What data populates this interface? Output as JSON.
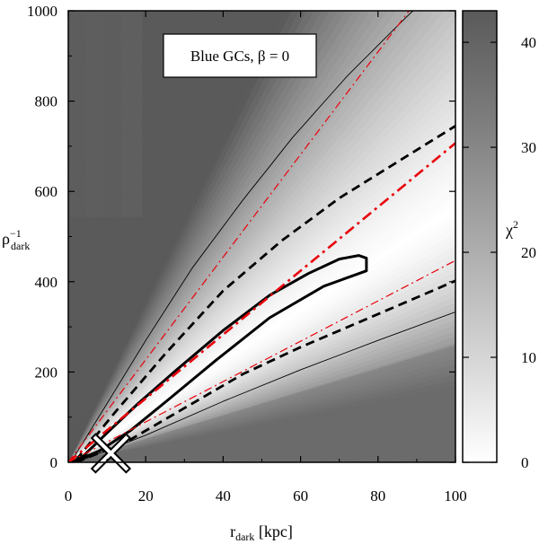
{
  "chart_data": {
    "type": "heatmap",
    "annotation": "Blue GCs, β = 0",
    "xlabel": {
      "main": "r",
      "sub": "dark",
      "unit": " [kpc]"
    },
    "ylabel": {
      "main": "ρ",
      "sup": "−1",
      "sub": "dark"
    },
    "xlim": [
      0,
      100
    ],
    "ylim": [
      0,
      1000
    ],
    "xticks": [
      0,
      20,
      40,
      60,
      80,
      100
    ],
    "yticks": [
      0,
      200,
      400,
      600,
      800,
      1000
    ],
    "colorbar": {
      "label": "χ",
      "label_sup": "2",
      "range": [
        0,
        43
      ],
      "ticks": [
        0,
        10,
        20,
        30,
        40
      ],
      "scale": "grayscale, white = 0, dark gray = high"
    },
    "heatmap": {
      "description": "chi-squared over (r_dark, rho_dark^-1); minimum valley along ridge from origin through (74, 430)",
      "valley_slope": 5.6,
      "max_value": 43
    },
    "marker": {
      "name": "cross",
      "x": 11,
      "y": 20
    },
    "contours": [
      {
        "name": "inner solid contour",
        "style": "solid-thick",
        "color": "#000000",
        "points": [
          [
            1,
            0
          ],
          [
            8,
            25
          ],
          [
            16,
            70
          ],
          [
            26,
            140
          ],
          [
            38,
            225
          ],
          [
            52,
            320
          ],
          [
            66,
            390
          ],
          [
            77,
            424
          ],
          [
            77,
            452
          ],
          [
            75,
            458
          ],
          [
            70,
            450
          ],
          [
            62,
            418
          ],
          [
            52,
            370
          ],
          [
            40,
            292
          ],
          [
            28,
            205
          ],
          [
            18,
            130
          ],
          [
            10,
            65
          ],
          [
            4,
            15
          ],
          [
            1,
            0
          ]
        ]
      },
      {
        "name": "dashed contour upper",
        "style": "dashed",
        "color": "#000000",
        "points": [
          [
            2,
            5
          ],
          [
            12,
            110
          ],
          [
            25,
            240
          ],
          [
            40,
            380
          ],
          [
            55,
            490
          ],
          [
            70,
            585
          ],
          [
            85,
            665
          ],
          [
            100,
            745
          ]
        ]
      },
      {
        "name": "dashed contour lower",
        "style": "dashed",
        "color": "#000000",
        "points": [
          [
            2,
            0
          ],
          [
            15,
            45
          ],
          [
            30,
            120
          ],
          [
            45,
            195
          ],
          [
            60,
            255
          ],
          [
            75,
            310
          ],
          [
            90,
            365
          ],
          [
            100,
            402
          ]
        ]
      },
      {
        "name": "thin contour upper",
        "style": "thin",
        "color": "#000000",
        "points": [
          [
            1,
            5
          ],
          [
            10,
            130
          ],
          [
            20,
            270
          ],
          [
            32,
            430
          ],
          [
            45,
            580
          ],
          [
            58,
            720
          ],
          [
            72,
            855
          ],
          [
            86,
            975
          ],
          [
            89,
            1000
          ]
        ]
      },
      {
        "name": "thin contour lower",
        "style": "thin",
        "color": "#000000",
        "points": [
          [
            2,
            0
          ],
          [
            20,
            60
          ],
          [
            40,
            135
          ],
          [
            60,
            205
          ],
          [
            80,
            270
          ],
          [
            100,
            333
          ]
        ]
      },
      {
        "name": "red dash-dot thick",
        "style": "dashdot-thick",
        "color": "#e8000b",
        "points": [
          [
            0,
            0
          ],
          [
            100,
            707
          ]
        ]
      },
      {
        "name": "red dash-dot thin upper",
        "style": "dashdot-thin",
        "color": "#e8000b",
        "points": [
          [
            0,
            0
          ],
          [
            88,
            1000
          ]
        ]
      },
      {
        "name": "red dash-dot thin lower",
        "style": "dashdot-thin",
        "color": "#e8000b",
        "points": [
          [
            0,
            0
          ],
          [
            100,
            447
          ]
        ]
      }
    ]
  }
}
